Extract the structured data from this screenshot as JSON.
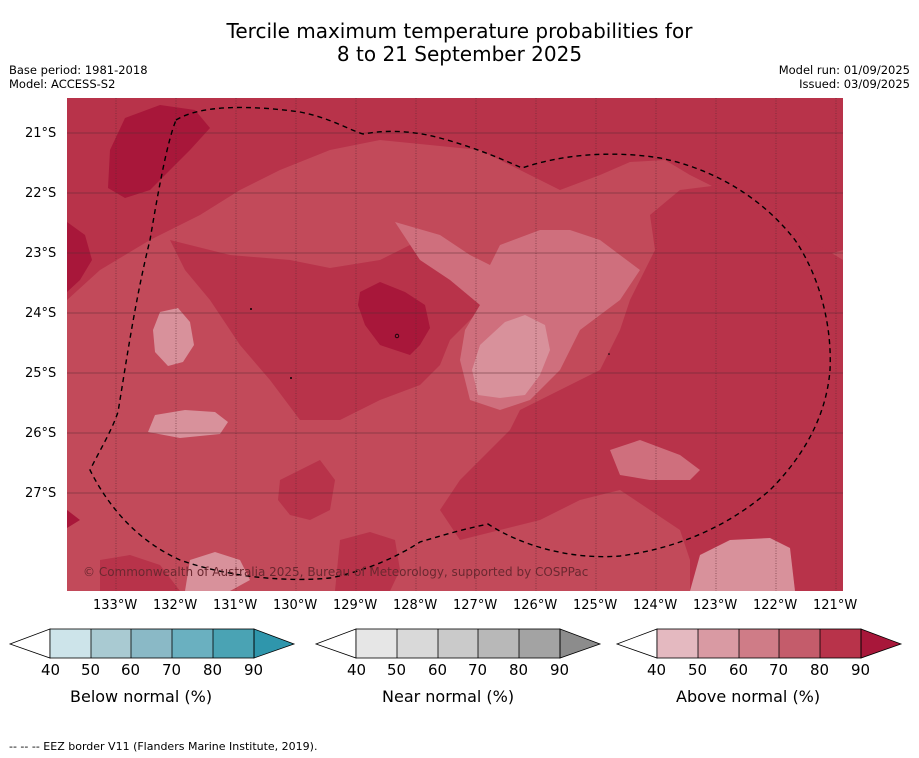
{
  "title": {
    "line1": "Tercile maximum temperature probabilities for",
    "line2": "8 to 21 September 2025"
  },
  "meta": {
    "base_period": "Base period: 1981-2018",
    "model": "Model: ACCESS-S2",
    "model_run": "Model run: 01/09/2025",
    "issued": "Issued: 03/09/2025"
  },
  "map": {
    "lat_labels": [
      "21°S",
      "22°S",
      "23°S",
      "24°S",
      "25°S",
      "26°S",
      "27°S"
    ],
    "lon_labels": [
      "133°W",
      "132°W",
      "131°W",
      "130°W",
      "129°W",
      "128°W",
      "127°W",
      "126°W",
      "125°W",
      "124°W",
      "123°W",
      "122°W",
      "121°W"
    ],
    "copyright": "© Commonwealth of Australia 2025, Bureau of Meteorology, supported by COSPPac",
    "colors": {
      "above_50": "#d8919b",
      "above_60": "#cf6f7d",
      "above_70": "#c24a5a",
      "above_80": "#b8334a",
      "above_90": "#a8173a"
    }
  },
  "colorbars": [
    {
      "label": "Below normal (%)",
      "ticks": [
        "40",
        "50",
        "60",
        "70",
        "80",
        "90"
      ],
      "colors": [
        "#cde4ea",
        "#a9cad2",
        "#8ab9c6",
        "#6ab0c0",
        "#4aa3b4",
        "#2f96ac"
      ]
    },
    {
      "label": "Near normal (%)",
      "ticks": [
        "40",
        "50",
        "60",
        "70",
        "80",
        "90"
      ],
      "colors": [
        "#e6e6e6",
        "#d9d9d9",
        "#cacaca",
        "#b8b8b8",
        "#a3a3a3",
        "#8c8c8c"
      ]
    },
    {
      "label": "Above normal (%)",
      "ticks": [
        "40",
        "50",
        "60",
        "70",
        "80",
        "90"
      ],
      "colors": [
        "#e4b9c0",
        "#d99aa3",
        "#cf7c87",
        "#c45c6b",
        "#b8334a",
        "#a8173a"
      ]
    }
  ],
  "footnote": "--  --  -- EEZ border V11 (Flanders Marine Institute, 2019)."
}
